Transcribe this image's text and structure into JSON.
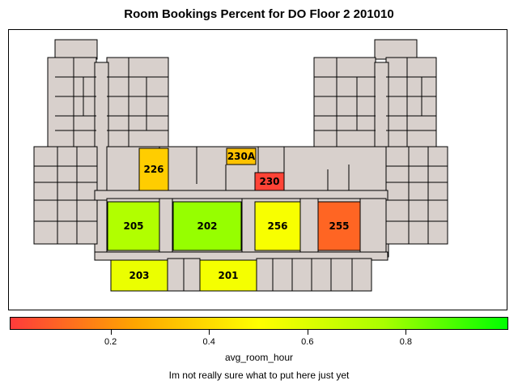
{
  "title": "Room Bookings Percent for DO Floor 2 201010",
  "legend": {
    "variable": "avg_room_hour",
    "ticks": [
      "0.2",
      "0.4",
      "0.6",
      "0.8"
    ],
    "colors": {
      "low": "#ff3b3b",
      "mid_low": "#ffa500",
      "mid": "#ffff00",
      "high": "#00ff00"
    }
  },
  "footnote": "Im not really sure what to put here just yet",
  "floor_fill": "#d8d0cc",
  "rooms": [
    {
      "id": "226",
      "label": "226",
      "value": 0.36
    },
    {
      "id": "230A",
      "label": "230A",
      "value": 0.33
    },
    {
      "id": "230",
      "label": "230",
      "value": 0.02
    },
    {
      "id": "205",
      "label": "205",
      "value": 0.73
    },
    {
      "id": "202",
      "label": "202",
      "value": 0.78
    },
    {
      "id": "256",
      "label": "256",
      "value": 0.52
    },
    {
      "id": "255",
      "label": "255",
      "value": 0.1
    },
    {
      "id": "203",
      "label": "203",
      "value": 0.56
    },
    {
      "id": "201",
      "label": "201",
      "value": 0.53
    }
  ]
}
